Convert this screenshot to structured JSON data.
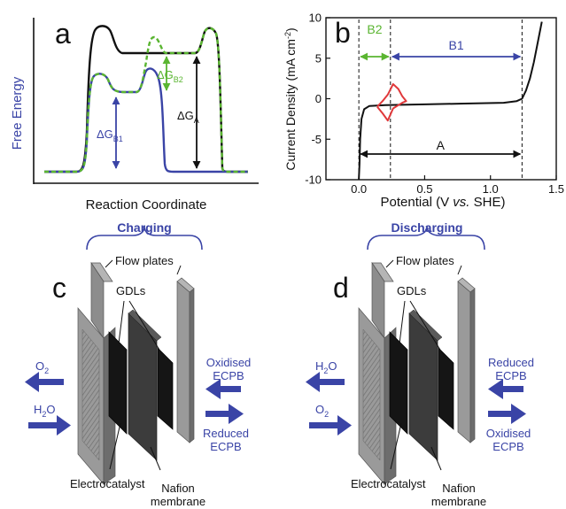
{
  "colors": {
    "blue": "#3a44a6",
    "green": "#5ab531",
    "red": "#e0393b",
    "black": "#111111",
    "plate": "#8d8d8d",
    "gdl": "#151515",
    "membrane": "#3c3c3c"
  },
  "panel_a": {
    "letter": "a",
    "ylabel": "Free Energy",
    "xlabel": "Reaction Coordinate",
    "dg_b1": "ΔG",
    "dg_b1_sub": "B1",
    "dg_b2": "ΔG",
    "dg_b2_sub": "B2",
    "dg_a": "ΔG",
    "dg_a_sub": "A"
  },
  "panel_b": {
    "letter": "b",
    "xlabel_pre": "Potential (V ",
    "xlabel_italic": "vs.",
    "xlabel_post": " SHE)",
    "ylabel_pre": "Current Density (mA cm",
    "ylabel_sup": "-2",
    "ylabel_post": ")",
    "xticks": [
      "0.0",
      "0.5",
      "1.0",
      "1.5"
    ],
    "yticks": [
      "10",
      "5",
      "0",
      "-5",
      "-10"
    ],
    "label_b2": "B2",
    "label_b1": "B1",
    "label_a": "A"
  },
  "chart_data": {
    "type": "line",
    "xlim": [
      -0.25,
      1.5
    ],
    "ylim": [
      -10,
      10
    ],
    "xticks": [
      0.0,
      0.5,
      1.0,
      1.5
    ],
    "yticks": [
      -10,
      -5,
      0,
      5,
      10
    ],
    "series": [
      {
        "color": "#111111",
        "x": [
          0.0,
          0.005,
          0.01,
          0.02,
          0.04,
          0.08,
          0.2,
          0.5,
          0.8,
          1.1,
          1.2,
          1.24,
          1.27,
          1.3,
          1.33,
          1.36,
          1.39
        ],
        "y": [
          -10,
          -8,
          -5,
          -2.5,
          -1.3,
          -0.9,
          -0.8,
          -0.7,
          -0.6,
          -0.5,
          -0.3,
          0.0,
          1.0,
          2.5,
          4.5,
          7.0,
          9.5
        ]
      },
      {
        "color": "#e0393b",
        "x": [
          0.14,
          0.18,
          0.22,
          0.26,
          0.3,
          0.33,
          0.36,
          0.33,
          0.3,
          0.26,
          0.22,
          0.18,
          0.14
        ],
        "y": [
          -1.0,
          -0.3,
          0.5,
          1.8,
          1.2,
          0.3,
          -0.3,
          -0.5,
          -0.8,
          -1.2,
          -2.7,
          -1.8,
          -1.0
        ]
      }
    ],
    "vlines": [
      0.0,
      0.24,
      1.24
    ],
    "ranges": [
      {
        "name": "B2",
        "from": 0.0,
        "to": 0.24
      },
      {
        "name": "B1",
        "from": 0.24,
        "to": 1.24
      },
      {
        "name": "A",
        "from": 0.0,
        "to": 1.24
      }
    ]
  },
  "panel_c": {
    "letter": "c",
    "mode": "Charging",
    "flow_plates": "Flow plates",
    "gdls": "GDLs",
    "left_top": "O",
    "left_top_sub": "2",
    "left_bottom": "H",
    "left_bottom_sub": "2",
    "left_bottom_post": "O",
    "right_top_1": "Oxidised",
    "right_top_2": "ECPB",
    "right_bottom_1": "Reduced",
    "right_bottom_2": "ECPB",
    "electrocatalyst": "Electrocatalyst",
    "nafion_1": "Nafion",
    "nafion_2": "membrane"
  },
  "panel_d": {
    "letter": "d",
    "mode": "Discharging",
    "flow_plates": "Flow plates",
    "gdls": "GDLs",
    "left_top": "H",
    "left_top_sub": "2",
    "left_top_post": "O",
    "left_bottom": "O",
    "left_bottom_sub": "2",
    "right_top_1": "Reduced",
    "right_top_2": "ECPB",
    "right_bottom_1": "Oxidised",
    "right_bottom_2": "ECPB",
    "electrocatalyst": "Electrocatalyst",
    "nafion_1": "Nafion",
    "nafion_2": "membrane"
  }
}
